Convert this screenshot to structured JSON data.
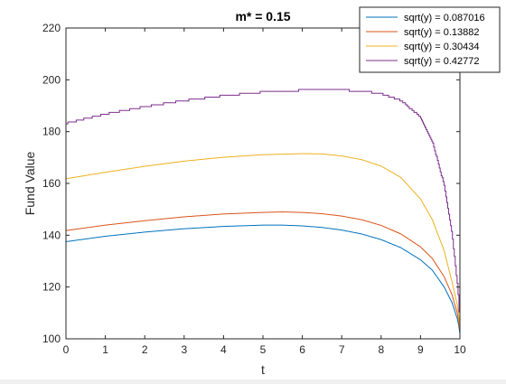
{
  "chart_data": {
    "type": "line",
    "title": "m* = 0.15",
    "xlabel": "t",
    "ylabel": "Fund Value",
    "xlim": [
      0,
      10
    ],
    "ylim": [
      100,
      220
    ],
    "xticks": [
      0,
      1,
      2,
      3,
      4,
      5,
      6,
      7,
      8,
      9,
      10
    ],
    "yticks": [
      100,
      120,
      140,
      160,
      180,
      200,
      220
    ],
    "grid": false,
    "legend_position": "top-right",
    "series": [
      {
        "name": "sqrt(y) = 0.087016",
        "color": "#0072BD",
        "x": [
          0,
          1,
          2,
          3,
          4,
          5,
          5.5,
          6,
          6.5,
          7,
          7.5,
          8,
          8.5,
          9,
          9.3,
          9.6,
          9.8,
          9.95,
          10
        ],
        "y": [
          137.5,
          139.6,
          141.2,
          142.5,
          143.4,
          143.9,
          143.9,
          143.6,
          143.0,
          142.0,
          140.5,
          138.3,
          135.2,
          130.5,
          126.5,
          120.0,
          114.0,
          107.0,
          102.0
        ]
      },
      {
        "name": "sqrt(y) = 0.13882",
        "color": "#D95319",
        "x": [
          0,
          1,
          2,
          3,
          4,
          5,
          5.5,
          6,
          6.5,
          7,
          7.5,
          8,
          8.5,
          9,
          9.3,
          9.6,
          9.8,
          9.95,
          10
        ],
        "y": [
          141.8,
          143.9,
          145.6,
          147.1,
          148.2,
          148.8,
          149.0,
          148.8,
          148.3,
          147.4,
          146.0,
          143.8,
          140.5,
          135.5,
          131.0,
          124.0,
          117.0,
          109.0,
          103.0
        ]
      },
      {
        "name": "sqrt(y) = 0.30434",
        "color": "#EDB120",
        "x": [
          0,
          1,
          2,
          3,
          4,
          5,
          6,
          6.5,
          7,
          7.5,
          8,
          8.5,
          9,
          9.3,
          9.6,
          9.8,
          9.95,
          10
        ],
        "y": [
          161.8,
          164.3,
          166.6,
          168.6,
          170.1,
          171.1,
          171.5,
          171.4,
          170.6,
          169.2,
          166.7,
          162.3,
          154.0,
          146.0,
          134.0,
          122.0,
          112.0,
          104.0
        ]
      },
      {
        "name": "sqrt(y) = 0.42772",
        "color": "#7E2F8E",
        "step": true,
        "x": [
          0,
          1,
          2,
          3,
          4,
          5,
          6,
          7,
          7.5,
          8,
          8.5,
          9,
          9.3,
          9.6,
          9.8,
          9.95,
          10
        ],
        "y": [
          183.2,
          186.8,
          189.6,
          192.0,
          193.9,
          195.3,
          196.0,
          196.0,
          195.8,
          194.6,
          192.0,
          185.5,
          176.0,
          159.0,
          140.0,
          118.0,
          104.0
        ]
      }
    ]
  }
}
